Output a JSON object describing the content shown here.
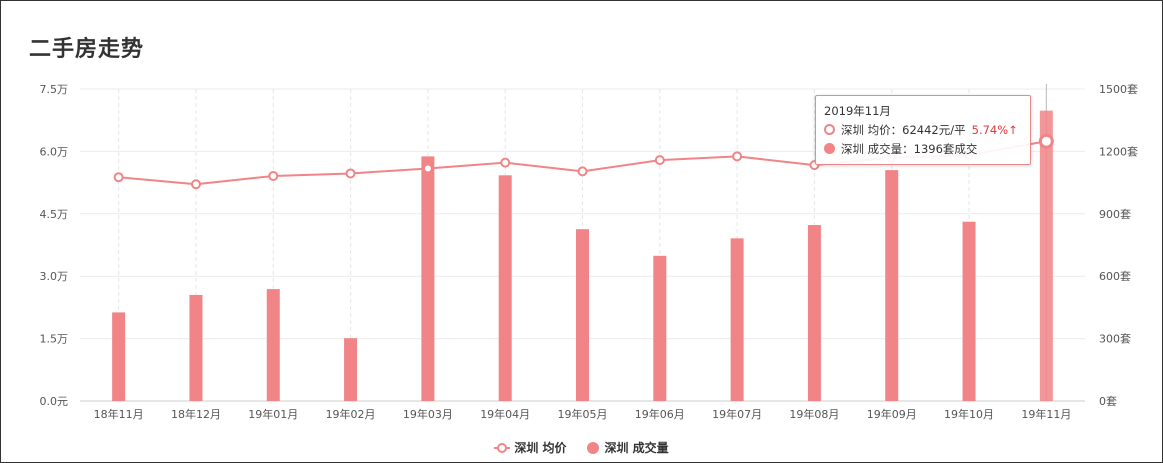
{
  "page": {
    "title": "二手房走势"
  },
  "chart_data": {
    "type": "bar+line",
    "categories": [
      "18年11月",
      "18年12月",
      "19年01月",
      "19年02月",
      "19年03月",
      "19年04月",
      "19年05月",
      "19年06月",
      "19年07月",
      "19年08月",
      "19年09月",
      "19年10月",
      "19年11月"
    ],
    "left_axis": {
      "min": 0,
      "max": 75000,
      "ticks": [
        "0.0元",
        "1.5万",
        "3.0万",
        "4.5万",
        "6.0万",
        "7.5万"
      ]
    },
    "right_axis": {
      "min": 0,
      "max": 1500,
      "ticks": [
        "0套",
        "300套",
        "600套",
        "900套",
        "1200套",
        "1500套"
      ]
    },
    "series": [
      {
        "name": "深圳 均价",
        "type": "line",
        "axis": "left",
        "color": "#f08486",
        "values": [
          53800,
          52100,
          54100,
          54700,
          55900,
          57300,
          55200,
          57900,
          58800,
          56700,
          58500,
          59100,
          62442
        ]
      },
      {
        "name": "深圳 成交量",
        "type": "bar",
        "axis": "right",
        "color": "#f08486",
        "values": [
          426,
          510,
          538,
          302,
          1176,
          1085,
          826,
          698,
          782,
          846,
          1110,
          862,
          1396
        ]
      }
    ],
    "legend_position": "bottom-center",
    "highlight_index": 12,
    "tooltip": {
      "header": "2019年11月",
      "price_text": "深圳 均价：62442元/平",
      "price_change": "5.74%↑",
      "volume_text": "深圳 成交量：1396套成交"
    },
    "grid": true
  }
}
